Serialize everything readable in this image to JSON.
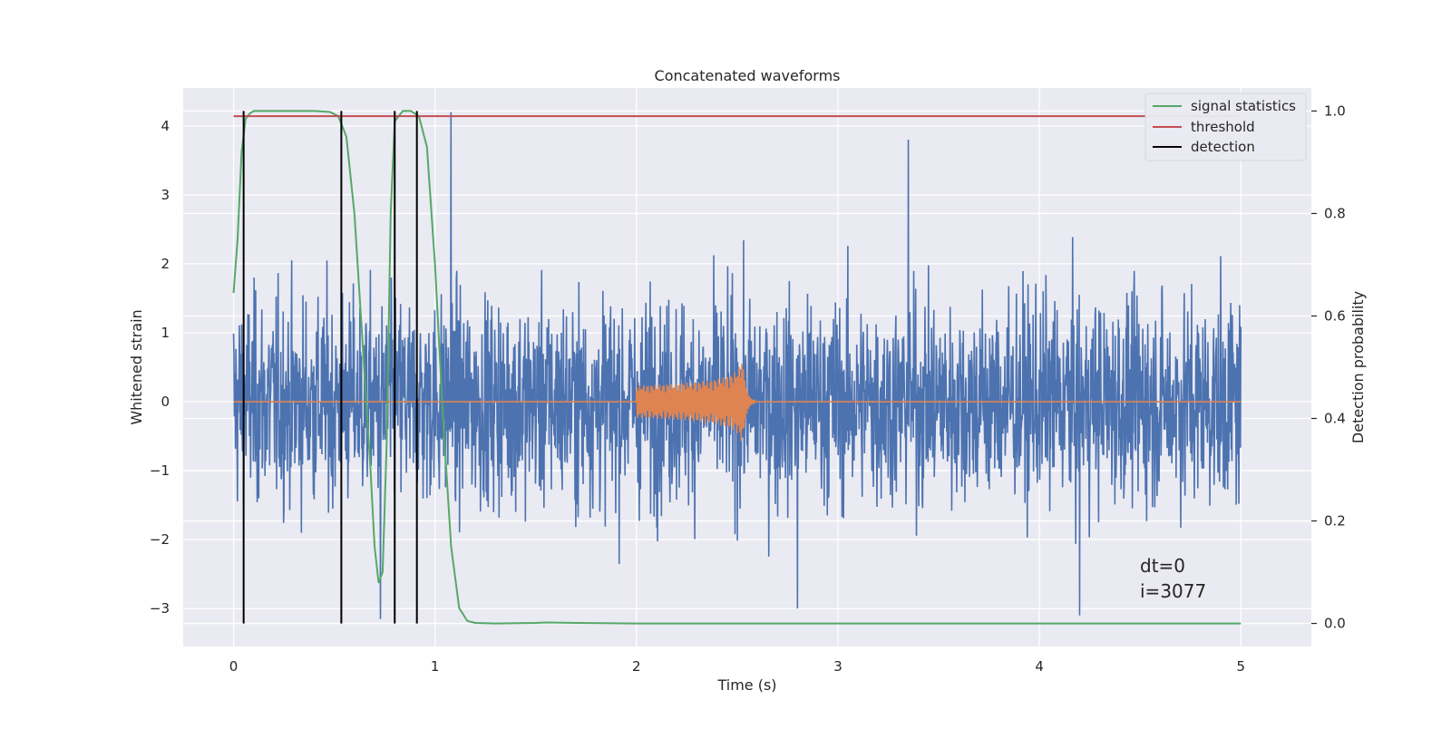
{
  "chart_data": {
    "type": "line",
    "title": "Concatenated waveforms",
    "xlabel": "Time (s)",
    "ylabel_left": "Whitened strain",
    "ylabel_right": "Detection probability",
    "xlim": [
      -0.25,
      5.35
    ],
    "ylim_left": [
      -3.55,
      4.55
    ],
    "ylim_right": [
      -0.045,
      1.045
    ],
    "x_ticks": [
      0,
      1,
      2,
      3,
      4,
      5
    ],
    "y_ticks_left": [
      -3,
      -2,
      -1,
      0,
      1,
      2,
      3,
      4
    ],
    "y_ticks_right": [
      0.0,
      0.2,
      0.4,
      0.6,
      0.8,
      1.0
    ],
    "x_tick_labels": [
      "0",
      "1",
      "2",
      "3",
      "4",
      "5"
    ],
    "y_tick_labels_left": [
      "−3",
      "−2",
      "−1",
      "0",
      "1",
      "2",
      "3",
      "4"
    ],
    "y_tick_labels_right": [
      "0.0",
      "0.2",
      "0.4",
      "0.6",
      "0.8",
      "1.0"
    ],
    "grid": true,
    "legend_position": "top-right",
    "legend": [
      {
        "label": "signal statistics",
        "color": "#55a868"
      },
      {
        "label": "threshold",
        "color": "#c44e52"
      },
      {
        "label": "detection",
        "color": "#000000"
      }
    ],
    "strain_series": {
      "color": "#4c72b0",
      "x_range": [
        0,
        5
      ],
      "amplitude_range": [
        -3.2,
        4.2
      ],
      "sample_peaks": [
        {
          "x": 1.08,
          "y": 4.2
        },
        {
          "x": 3.35,
          "y": 3.8
        },
        {
          "x": 0.73,
          "y": -3.15
        },
        {
          "x": 4.2,
          "y": -3.1
        },
        {
          "x": 2.8,
          "y": -3.0
        }
      ]
    },
    "injected_signal": {
      "color": "#dd8452",
      "x_start": 2.0,
      "x_merger": 2.53,
      "peak_amplitude": 0.8
    },
    "signal_statistics": {
      "color": "#55a868",
      "x": [
        0.0,
        0.02,
        0.04,
        0.06,
        0.08,
        0.1,
        0.2,
        0.4,
        0.48,
        0.52,
        0.56,
        0.6,
        0.64,
        0.68,
        0.7,
        0.72,
        0.74,
        0.76,
        0.78,
        0.8,
        0.84,
        0.88,
        0.92,
        0.96,
        1.0,
        1.04,
        1.08,
        1.12,
        1.16,
        1.2,
        1.3,
        1.5,
        1.55,
        1.7,
        2.0,
        3.0,
        4.0,
        5.0
      ],
      "y": [
        0.645,
        0.75,
        0.92,
        0.985,
        0.995,
        1.0,
        1.0,
        1.0,
        0.998,
        0.99,
        0.95,
        0.8,
        0.55,
        0.3,
        0.15,
        0.08,
        0.1,
        0.35,
        0.8,
        0.98,
        1.0,
        1.0,
        0.99,
        0.93,
        0.7,
        0.4,
        0.15,
        0.03,
        0.005,
        0.001,
        0.0,
        0.001,
        0.002,
        0.001,
        0.0,
        0.0,
        0.0,
        0.0
      ]
    },
    "threshold": {
      "value": 0.99,
      "x_range": [
        0,
        5
      ],
      "color": "#c44e52"
    },
    "detections": {
      "x": [
        0.05,
        0.535,
        0.8,
        0.91
      ],
      "ymin": 0.0,
      "ymax": 1.0,
      "color": "#000000"
    },
    "annotations": [
      "dt=0",
      "i=3077"
    ]
  }
}
